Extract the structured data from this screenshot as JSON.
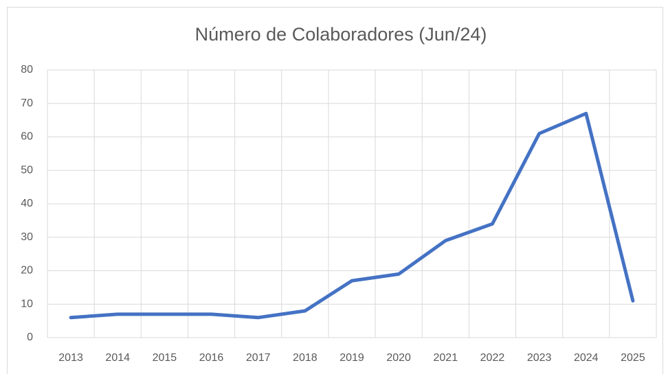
{
  "chart_data": {
    "type": "line",
    "title": "Número de Colaboradores (Jun/24)",
    "categories": [
      "2013",
      "2014",
      "2015",
      "2016",
      "2017",
      "2018",
      "2019",
      "2020",
      "2021",
      "2022",
      "2023",
      "2024",
      "2025"
    ],
    "values": [
      6,
      7,
      7,
      7,
      6,
      8,
      17,
      19,
      29,
      34,
      61,
      67,
      11
    ],
    "color": "#4472c4",
    "ylim": [
      0,
      80
    ],
    "yticks": [
      0,
      10,
      20,
      30,
      40,
      50,
      60,
      70,
      80
    ],
    "grid": true
  }
}
